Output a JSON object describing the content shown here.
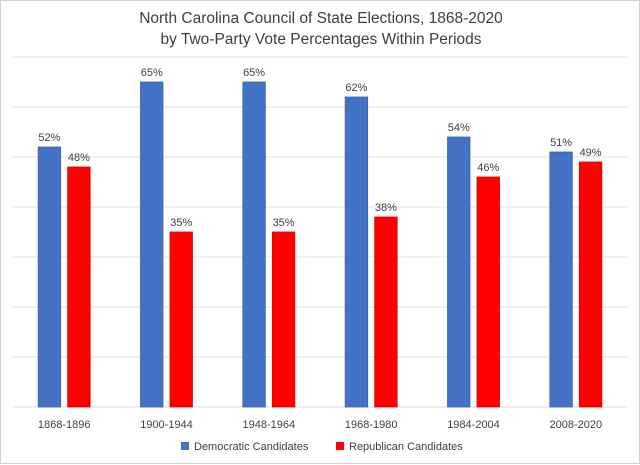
{
  "chart_data": {
    "type": "bar",
    "title_lines": [
      "North Carolina Council of State Elections, 1868-2020",
      "by Two-Party Vote Percentages Within Periods"
    ],
    "categories": [
      "1868-1896",
      "1900-1944",
      "1948-1964",
      "1968-1980",
      "1984-2004",
      "2008-2020"
    ],
    "series": [
      {
        "name": "Democratic Candidates",
        "color": "#4472C4",
        "values": [
          52,
          65,
          65,
          62,
          54,
          51
        ],
        "labels": [
          "52%",
          "65%",
          "65%",
          "62%",
          "54%",
          "51%"
        ]
      },
      {
        "name": "Republican Candidates",
        "color": "#FF0000",
        "values": [
          48,
          35,
          35,
          38,
          46,
          49
        ],
        "labels": [
          "48%",
          "35%",
          "35%",
          "38%",
          "46%",
          "49%"
        ]
      }
    ],
    "ylim": [
      0,
      70
    ],
    "y_gridlines": [
      0,
      10,
      20,
      30,
      40,
      50,
      60,
      70
    ],
    "grid": true,
    "legend_position": "bottom",
    "xlabel": "",
    "ylabel": ""
  }
}
